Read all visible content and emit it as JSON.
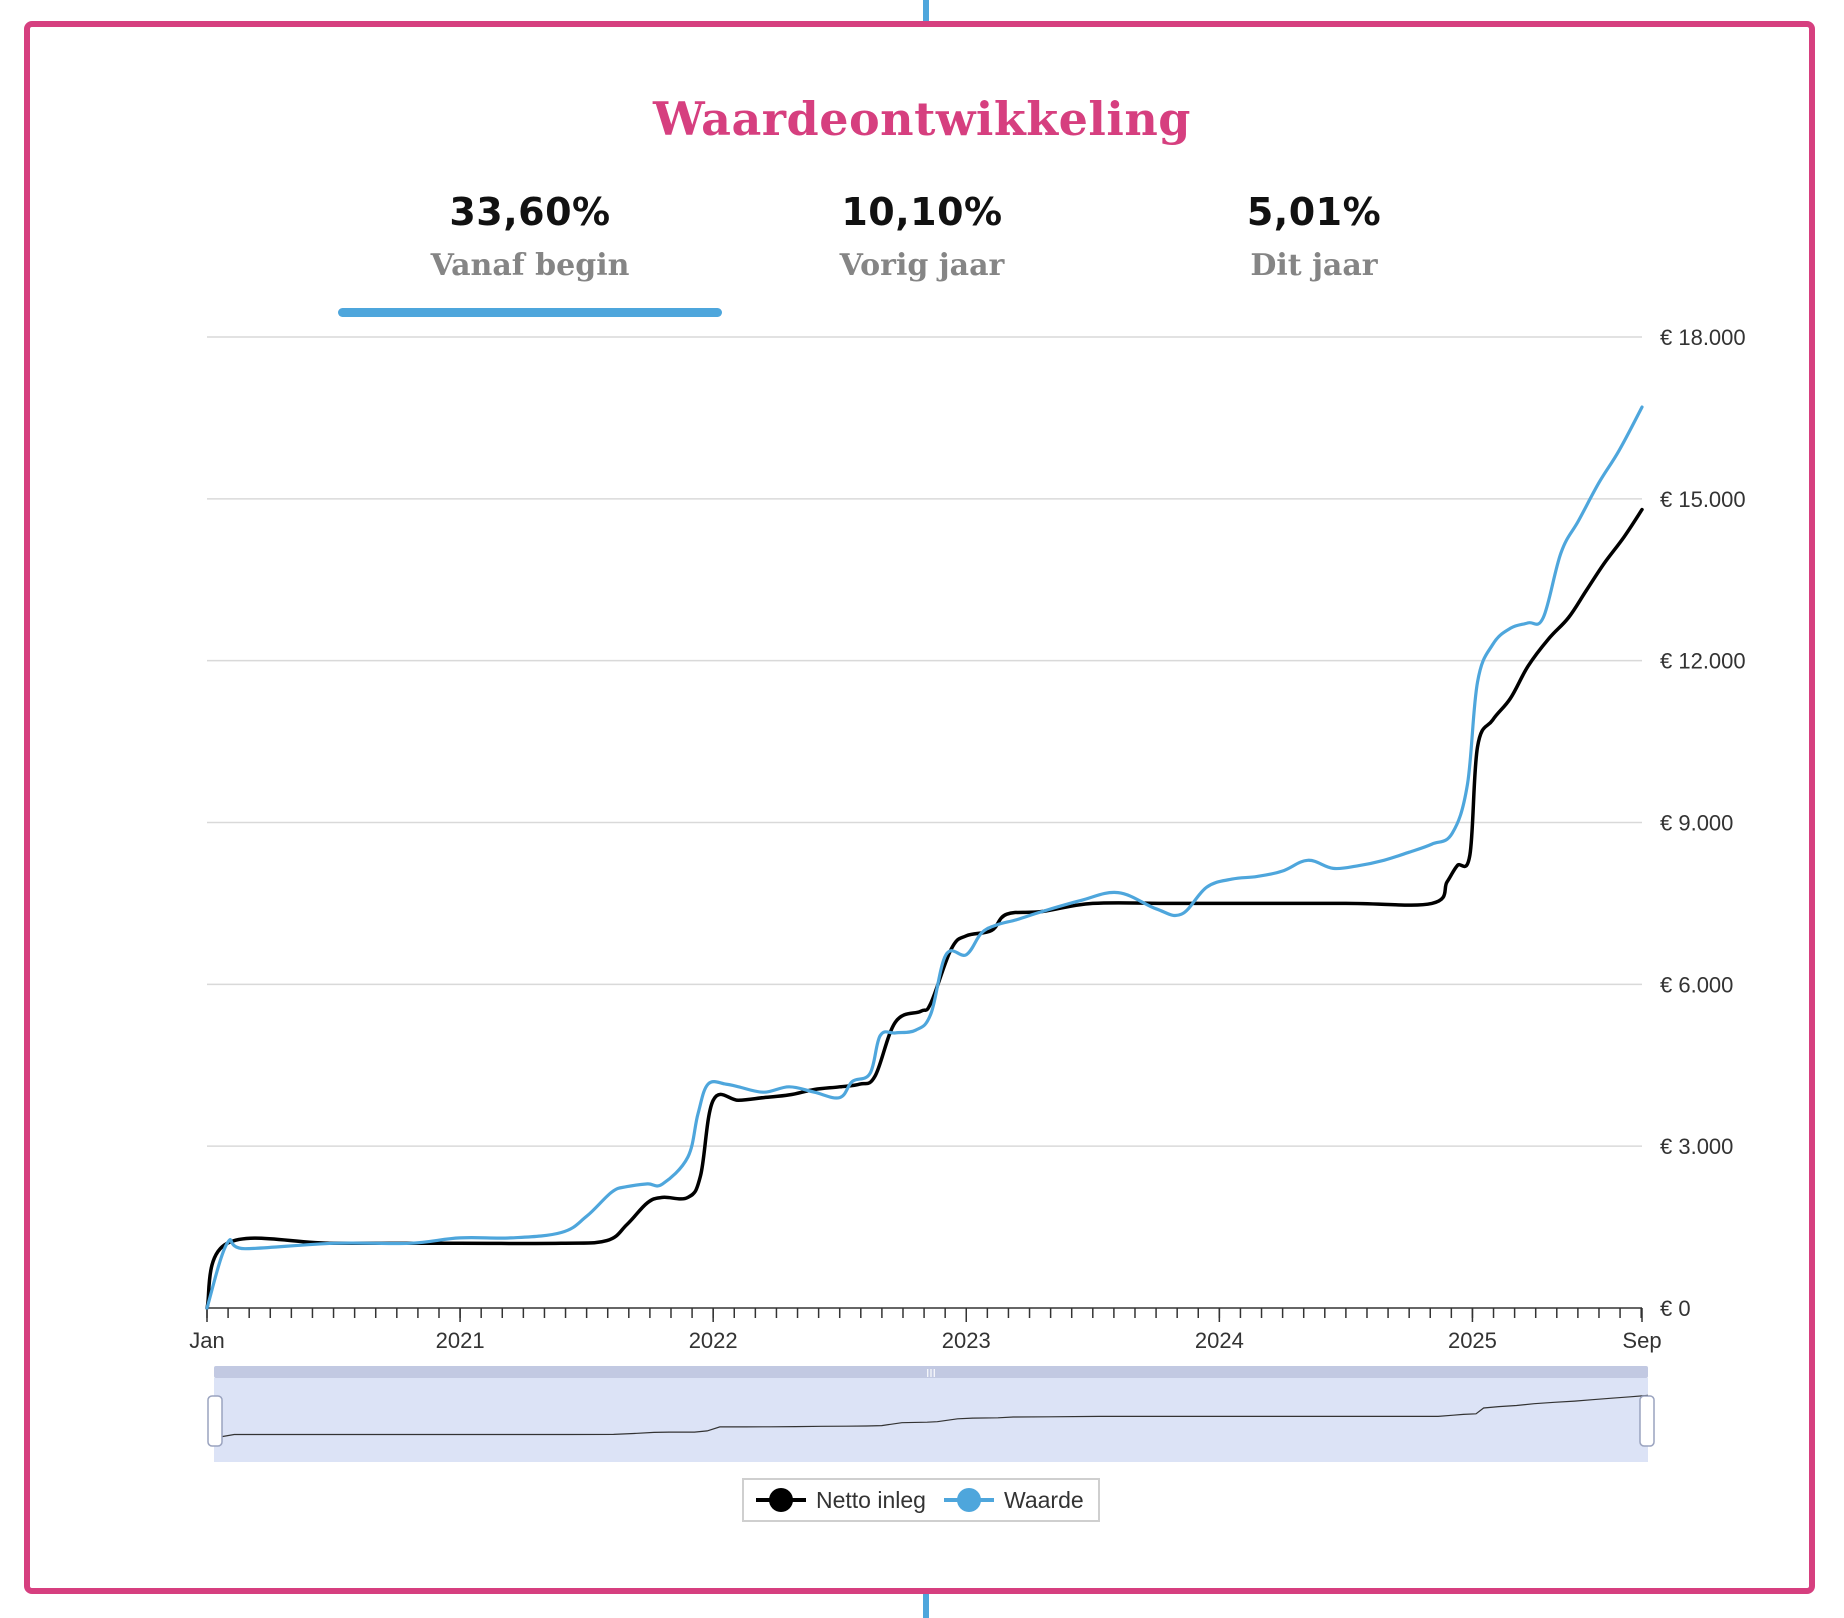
{
  "title": "Waardeontwikkeling",
  "tabs": [
    {
      "value": "33,60%",
      "label": "Vanaf begin",
      "active": true
    },
    {
      "value": "10,10%",
      "label": "Vorig jaar",
      "active": false
    },
    {
      "value": "5,01%",
      "label": "Dit jaar",
      "active": false
    }
  ],
  "colors": {
    "accent": "#d63f7f",
    "tab_active": "#4ea6dc",
    "netto": "#000000",
    "waarde": "#4ea6dc"
  },
  "chart_data": {
    "type": "line",
    "title": "",
    "xlabel": "",
    "ylabel": "",
    "xlim": [
      2020.0,
      2025.67
    ],
    "ylim": [
      0,
      18000
    ],
    "y_ticks": [
      0,
      3000,
      6000,
      9000,
      12000,
      15000,
      18000
    ],
    "y_tick_labels": [
      "€ 0",
      "€  3.000",
      "€  6.000",
      "€  9.000",
      "€  12.000",
      "€  15.000",
      "€  18.000"
    ],
    "x_ticks": [
      2020.0,
      2021.0,
      2022.0,
      2023.0,
      2024.0,
      2025.0,
      2025.67
    ],
    "x_tick_labels": [
      "Jan",
      "2021",
      "2022",
      "2023",
      "2024",
      "2025",
      "Sep"
    ],
    "grid": true,
    "legend": "bottom-center",
    "series": [
      {
        "name": "Netto inleg",
        "x": [
          2020.0,
          2020.08,
          2020.5,
          2021.0,
          2021.4,
          2021.58,
          2021.66,
          2021.74,
          2021.8,
          2021.9,
          2021.95,
          2022.0,
          2022.1,
          2022.2,
          2022.3,
          2022.4,
          2022.5,
          2022.58,
          2022.64,
          2022.72,
          2022.82,
          2022.86,
          2022.94,
          2023.0,
          2023.1,
          2023.16,
          2023.3,
          2023.5,
          2023.8,
          2024.0,
          2024.5,
          2024.84,
          2024.9,
          2024.94,
          2024.99,
          2025.02,
          2025.08,
          2025.15,
          2025.22,
          2025.3,
          2025.38,
          2025.45,
          2025.52,
          2025.6,
          2025.67
        ],
        "y": [
          0,
          1200,
          1200,
          1200,
          1200,
          1250,
          1550,
          1950,
          2050,
          2050,
          2450,
          3850,
          3850,
          3900,
          3950,
          4050,
          4100,
          4150,
          4300,
          5300,
          5500,
          5650,
          6650,
          6900,
          7000,
          7300,
          7350,
          7500,
          7500,
          7500,
          7500,
          7500,
          7900,
          8200,
          8400,
          10400,
          10900,
          11300,
          11900,
          12400,
          12800,
          13300,
          13800,
          14300,
          14800
        ]
      },
      {
        "name": "Waarde",
        "x": [
          2020.0,
          2020.08,
          2020.15,
          2020.5,
          2020.8,
          2021.0,
          2021.2,
          2021.4,
          2021.5,
          2021.6,
          2021.66,
          2021.74,
          2021.8,
          2021.9,
          2021.94,
          2021.98,
          2022.05,
          2022.1,
          2022.2,
          2022.3,
          2022.4,
          2022.5,
          2022.55,
          2022.62,
          2022.66,
          2022.72,
          2022.8,
          2022.86,
          2022.92,
          2023.0,
          2023.06,
          2023.12,
          2023.2,
          2023.3,
          2023.45,
          2023.6,
          2023.75,
          2023.85,
          2023.95,
          2024.05,
          2024.15,
          2024.25,
          2024.35,
          2024.45,
          2024.55,
          2024.65,
          2024.75,
          2024.84,
          2024.92,
          2024.98,
          2025.02,
          2025.08,
          2025.15,
          2025.22,
          2025.28,
          2025.35,
          2025.42,
          2025.5,
          2025.58,
          2025.67
        ],
        "y": [
          0,
          1200,
          1100,
          1200,
          1200,
          1300,
          1300,
          1400,
          1700,
          2150,
          2250,
          2300,
          2300,
          2800,
          3600,
          4150,
          4150,
          4100,
          4000,
          4100,
          4000,
          3900,
          4200,
          4350,
          5050,
          5100,
          5150,
          5450,
          6550,
          6550,
          6950,
          7100,
          7200,
          7350,
          7550,
          7700,
          7400,
          7300,
          7800,
          7950,
          8000,
          8100,
          8300,
          8150,
          8200,
          8300,
          8450,
          8600,
          8800,
          9700,
          11600,
          12300,
          12600,
          12700,
          12800,
          14000,
          14600,
          15300,
          15900,
          16700
        ]
      }
    ]
  },
  "navigator": {
    "handle_glyph": "III"
  }
}
